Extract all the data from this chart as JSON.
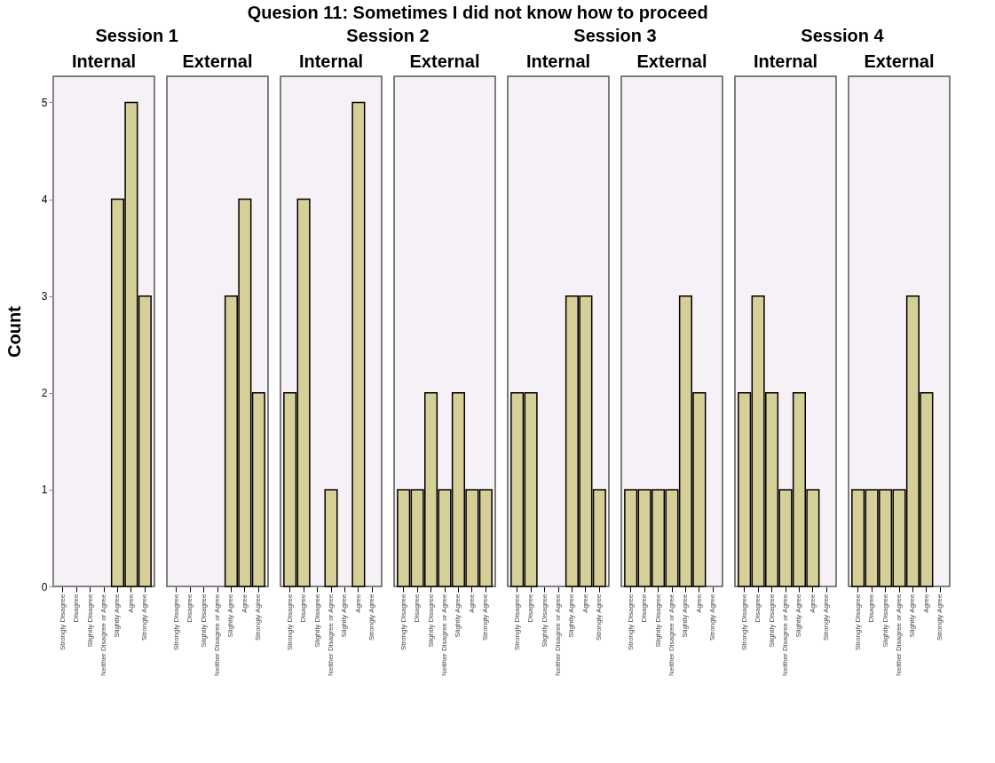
{
  "chart_data": [
    {
      "type": "bar",
      "title": "Session 1",
      "subtitle": "Internal",
      "ylabel": "Count",
      "annotations": [
        "Quesion 11: Sometimes I did not know how to proceed"
      ],
      "categories": [
        "Strongly Disagree",
        "Disagree",
        "Slightly Disagree",
        "Neither Disagree or Agree",
        "Slightly Agree",
        "Agree",
        "Strongly Agree"
      ],
      "values": [
        0,
        0,
        0,
        0,
        4,
        5,
        3
      ],
      "color": "#d6cf97",
      "ylim": [
        0,
        5.27
      ],
      "yticks": [
        0,
        1,
        2,
        3,
        4,
        5
      ],
      "grid": false
    },
    {
      "type": "bar",
      "subtitle": "External",
      "categories": [
        "Strongly Disagree",
        "Disagree",
        "Slightly Disagree",
        "Neither Disagree or Agree",
        "Slightly Agree",
        "Agree",
        "Strongly Agree"
      ],
      "values": [
        0,
        0,
        0,
        0,
        3,
        4,
        2
      ],
      "color": "#d6cf97",
      "ylim": [
        0,
        5.27
      ],
      "tick_labels": "x",
      "grid": false
    },
    {
      "type": "bar",
      "title": "Session 2",
      "subtitle": "Internal",
      "categories": [
        "Strongly Disagree",
        "Disagree",
        "Slightly Disagree",
        "Neither Disagree or Agree",
        "Slightly Agree",
        "Agree",
        "Strongly Agree"
      ],
      "values": [
        2,
        4,
        0,
        1,
        0,
        5,
        0
      ],
      "color": "#d6cf97",
      "ylim": [
        0,
        5.27
      ],
      "tick_labels": "x",
      "grid": false
    },
    {
      "type": "bar",
      "subtitle": "External",
      "categories": [
        "Strongly Disagree",
        "Disagree",
        "Slightly Disagree",
        "Neither Disagree or Agree",
        "Slightly Agree",
        "Agree",
        "Strongly Agree"
      ],
      "values": [
        1,
        1,
        2,
        1,
        2,
        1,
        1
      ],
      "color": "#d6cf97",
      "ylim": [
        0,
        5.27
      ],
      "tick_labels": "x",
      "grid": false
    },
    {
      "type": "bar",
      "title": "Session 3",
      "subtitle": "Internal",
      "categories": [
        "Strongly Disagree",
        "Disagree",
        "Slightly Disagree",
        "Neither Disagree or Agree",
        "Slightly Agree",
        "Agree",
        "Strongly Agree"
      ],
      "values": [
        2,
        2,
        0,
        0,
        3,
        3,
        1
      ],
      "color": "#d6cf97",
      "ylim": [
        0,
        5.27
      ],
      "tick_labels": "x",
      "grid": false
    },
    {
      "type": "bar",
      "subtitle": "External",
      "categories": [
        "Strongly Disagree",
        "Disagree",
        "Slightly Disagree",
        "Neither Disagree or Agree",
        "Slightly Agree",
        "Agree",
        "Strongly Agree"
      ],
      "values": [
        1,
        1,
        1,
        1,
        3,
        2,
        0
      ],
      "color": "#d6cf97",
      "ylim": [
        0,
        5.27
      ],
      "tick_labels": "x",
      "grid": false
    },
    {
      "type": "bar",
      "title": "Session 4",
      "subtitle": "Internal",
      "categories": [
        "Strongly Disagree",
        "Disagree",
        "Slightly Disagree",
        "Neither Disagree or Agree",
        "Slightly Agree",
        "Agree",
        "Strongly Agree"
      ],
      "values": [
        2,
        3,
        2,
        1,
        2,
        1,
        0
      ],
      "color": "#d6cf97",
      "ylim": [
        0,
        5.27
      ],
      "tick_labels": "x",
      "grid": false
    },
    {
      "type": "bar",
      "subtitle": "External",
      "categories": [
        "Strongly Disagree",
        "Disagree",
        "Slightly Disagree",
        "Neither Disagree or Agree",
        "Slightly Agree",
        "Agree",
        "Strongly Agree"
      ],
      "values": [
        1,
        1,
        1,
        1,
        3,
        2,
        0
      ],
      "color": "#d6cf97",
      "ylim": [
        0,
        5.27
      ],
      "tick_labels": "x",
      "grid": false
    }
  ]
}
